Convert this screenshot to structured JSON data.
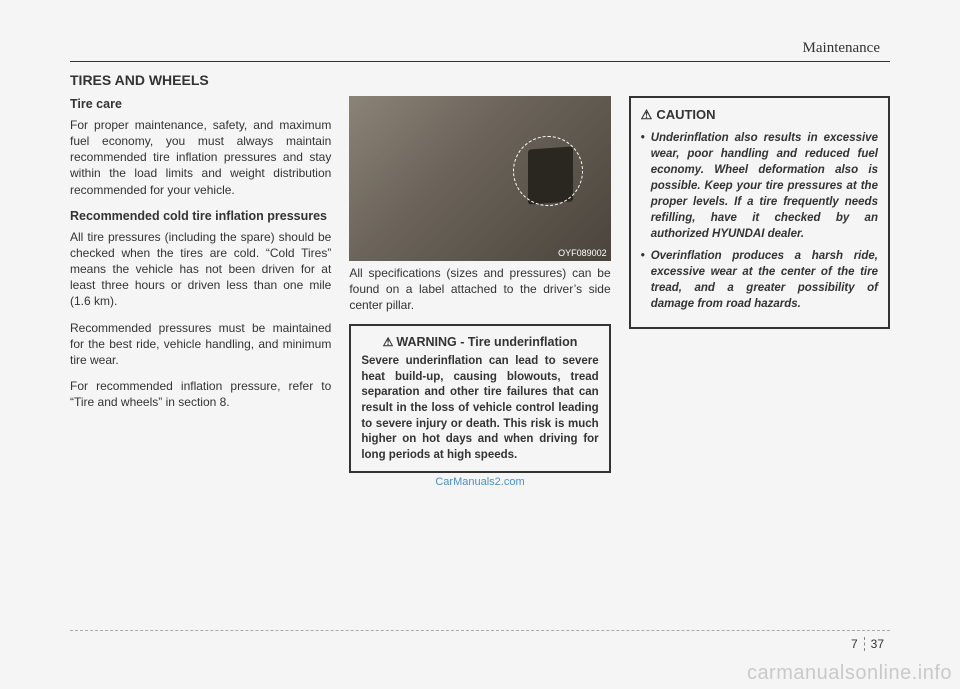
{
  "header": {
    "label": "Maintenance"
  },
  "section_title": "TIRES AND WHEELS",
  "col1": {
    "sub1": "Tire care",
    "p1": "For proper maintenance, safety, and maximum fuel economy, you must always maintain recommended tire inflation pressures and stay within the load limits and weight distribution recommended for your vehicle.",
    "sub2": "Recommended cold tire inflation pressures",
    "p2": "All tire pressures (including the spare) should be checked when the tires are cold. “Cold Tires” means the vehicle has not been driven for at least three hours or driven less than one mile (1.6 km).",
    "p3": "Recommended pressures must be maintained for the best ride, vehicle handling, and minimum tire wear.",
    "p4": "For recommended inflation pressure, refer to “Tire and wheels” in section 8."
  },
  "col2": {
    "photo_id": "OYF089002",
    "p1": "All specifications (sizes and pressures) can be found on a label attached to the driver’s side center pillar.",
    "warn_title": "WARNING - Tire underinflation",
    "warn_body": "Severe underinflation can lead to severe heat build-up, causing blowouts, tread separation and other tire failures that can result in the loss of vehicle control leading to severe injury or death. This risk is much higher on hot days and when driving for long periods at high speeds.",
    "watermark": "CarManuals2.com"
  },
  "col3": {
    "caution_title": "CAUTION",
    "b1": "Underinflation also results in excessive wear, poor handling and reduced fuel economy. Wheel deformation also is possible. Keep your tire pressures at the proper levels. If a tire frequently needs refilling, have it checked by an authorized HYUNDAI dealer.",
    "b2": "Overinflation produces a harsh ride, excessive wear at the center of the tire tread, and a greater possibility of damage from road hazards."
  },
  "footer": {
    "chapter": "7",
    "page": "37"
  },
  "big_watermark": "carmanualsonline.info"
}
